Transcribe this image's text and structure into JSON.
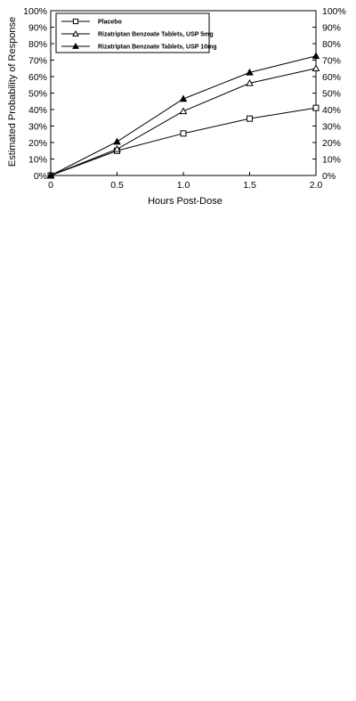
{
  "chart_data": {
    "type": "line",
    "xlabel": "Hours Post-Dose",
    "ylabel": "Estimated Probability of Response",
    "xlim": [
      0,
      2.0
    ],
    "ylim": [
      0,
      1.0
    ],
    "x_ticks": [
      "0",
      "0.5",
      "1.0",
      "1.5",
      "2.0"
    ],
    "x_tick_values": [
      0,
      0.5,
      1.0,
      1.5,
      2.0
    ],
    "y_ticks": [
      "0%",
      "10%",
      "20%",
      "30%",
      "40%",
      "50%",
      "60%",
      "70%",
      "80%",
      "90%",
      "100%"
    ],
    "y_tick_values": [
      0,
      0.1,
      0.2,
      0.3,
      0.4,
      0.5,
      0.6,
      0.7,
      0.8,
      0.9,
      1.0
    ],
    "right_axis_mirrored": true,
    "grid": false,
    "legend_position": "top-left",
    "x": [
      0,
      0.5,
      1.0,
      1.5,
      2.0
    ],
    "series": [
      {
        "name": "Placebo",
        "marker": "open-square",
        "values": [
          0.0,
          0.15,
          0.255,
          0.345,
          0.41
        ]
      },
      {
        "name": "Rizatriptan Benzoate Tablets, USP 5mg",
        "marker": "open-triangle",
        "values": [
          0.0,
          0.16,
          0.39,
          0.56,
          0.65
        ]
      },
      {
        "name": "Rizatriptan Benzoate Tablets, USP 10mg",
        "marker": "filled-triangle",
        "values": [
          0.0,
          0.205,
          0.465,
          0.625,
          0.725
        ]
      }
    ],
    "colors": {
      "line": "#000000",
      "background": "#ffffff"
    }
  }
}
